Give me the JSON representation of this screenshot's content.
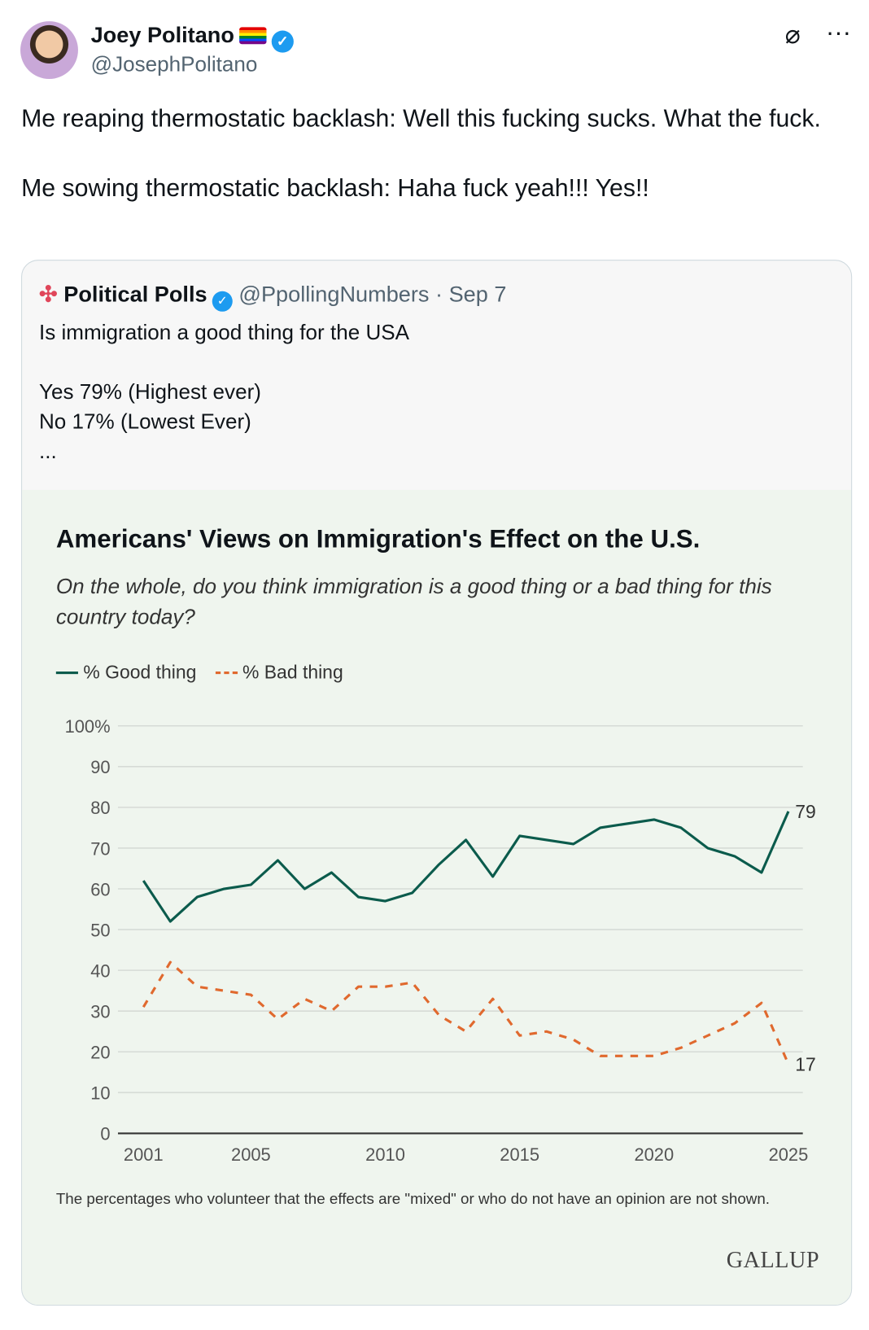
{
  "post": {
    "author_name": "Joey Politano",
    "handle": "@JosephPolitano",
    "text": "Me reaping thermostatic backlash: Well this fucking sucks. What the fuck.\n\nMe sowing thermostatic backlash: Haha fuck yeah!!! Yes!!",
    "more_label": "···"
  },
  "quote": {
    "author_name": "Political Polls",
    "handle": "@PpollingNumbers",
    "date": "· Sep 7",
    "text": "Is immigration a good thing for the USA\n\nYes 79% (Highest ever)\nNo 17% (Lowest Ever)\n..."
  },
  "chart_data": {
    "type": "line",
    "title": "Americans' Views on Immigration's Effect on the U.S.",
    "subtitle": "On the whole, do you think immigration is a good thing or a bad thing for this country today?",
    "note": "The percentages who volunteer that the effects are \"mixed\" or who do not have an opinion are not shown.",
    "source": "GALLUP",
    "ylim": [
      0,
      100
    ],
    "xlim": [
      2001,
      2025
    ],
    "y_ticks": [
      "0",
      "10",
      "20",
      "30",
      "40",
      "50",
      "60",
      "70",
      "80",
      "90",
      "100%"
    ],
    "x_ticks": [
      "2001",
      "2005",
      "2010",
      "2015",
      "2020",
      "2025"
    ],
    "series": [
      {
        "name": "% Good thing",
        "color": "#0b5b4c",
        "dash": false,
        "end_label": "79",
        "x": [
          2001,
          2002,
          2003,
          2004,
          2005,
          2006,
          2007,
          2008,
          2009,
          2010,
          2011,
          2012,
          2013,
          2014,
          2015,
          2017,
          2018,
          2020,
          2021,
          2022,
          2023,
          2024,
          2025
        ],
        "y": [
          62,
          52,
          58,
          60,
          61,
          67,
          60,
          64,
          58,
          57,
          59,
          66,
          72,
          63,
          73,
          71,
          75,
          77,
          75,
          70,
          68,
          64,
          79
        ]
      },
      {
        "name": "% Bad thing",
        "color": "#e0692e",
        "dash": true,
        "end_label": "17",
        "x": [
          2001,
          2002,
          2003,
          2004,
          2005,
          2006,
          2007,
          2008,
          2009,
          2010,
          2011,
          2012,
          2013,
          2014,
          2015,
          2016,
          2017,
          2018,
          2020,
          2021,
          2022,
          2023,
          2024,
          2025
        ],
        "y": [
          31,
          42,
          36,
          35,
          34,
          28,
          33,
          30,
          36,
          36,
          37,
          29,
          25,
          33,
          24,
          25,
          23,
          19,
          19,
          21,
          24,
          27,
          32,
          17
        ]
      }
    ]
  }
}
